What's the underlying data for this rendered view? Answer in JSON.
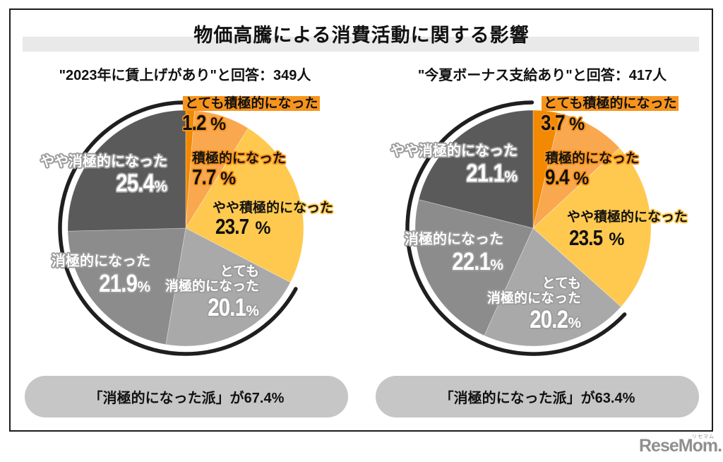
{
  "page_title": "物価高騰による消費活動に関する影響",
  "percent_symbol": "%",
  "logo": {
    "text": "ReseMom.",
    "ruby": "リセマム"
  },
  "chart_data": [
    {
      "type": "pie",
      "title": "\"2023年に賃上げがあり\"と回答：349人",
      "respondents": 349,
      "start_angle_deg": 0,
      "direction": "clockwise",
      "slices": [
        {
          "label": "とても積極的になった",
          "value": 1.2,
          "color": "#F28900"
        },
        {
          "label": "積極的になった",
          "value": 7.7,
          "color": "#F9A84F"
        },
        {
          "label": "やや積極的になった",
          "value": 23.7,
          "color": "#FFC94F"
        },
        {
          "label": "とても消極的になった",
          "label_line1": "とても",
          "label_line2": "消極的になった",
          "value": 20.1,
          "color": "#A9A9A9"
        },
        {
          "label": "消極的になった",
          "value": 21.9,
          "color": "#8C8C8C"
        },
        {
          "label": "やや消極的になった",
          "value": 25.4,
          "color": "#5A5A5A"
        }
      ],
      "negative_total_pct": 67.4,
      "summary": "「消極的になった派」が67.4%",
      "arc_color": "#1f1f1f"
    },
    {
      "type": "pie",
      "title": "\"今夏ボーナス支給あり\"と回答：417人",
      "respondents": 417,
      "start_angle_deg": 0,
      "direction": "clockwise",
      "slices": [
        {
          "label": "とても積極的になった",
          "value": 3.7,
          "color": "#F28900"
        },
        {
          "label": "積極的になった",
          "value": 9.4,
          "color": "#F9A84F"
        },
        {
          "label": "やや積極的になった",
          "value": 23.5,
          "color": "#FFC94F"
        },
        {
          "label": "とても消極的になった",
          "label_line1": "とても",
          "label_line2": "消極的になった",
          "value": 20.2,
          "color": "#A9A9A9"
        },
        {
          "label": "消極的になった",
          "value": 22.1,
          "color": "#8C8C8C"
        },
        {
          "label": "やや消極的になった",
          "value": 21.1,
          "color": "#5A5A5A"
        }
      ],
      "negative_total_pct": 63.4,
      "summary": "「消極的になった派」が63.4%",
      "arc_color": "#1f1f1f"
    }
  ]
}
